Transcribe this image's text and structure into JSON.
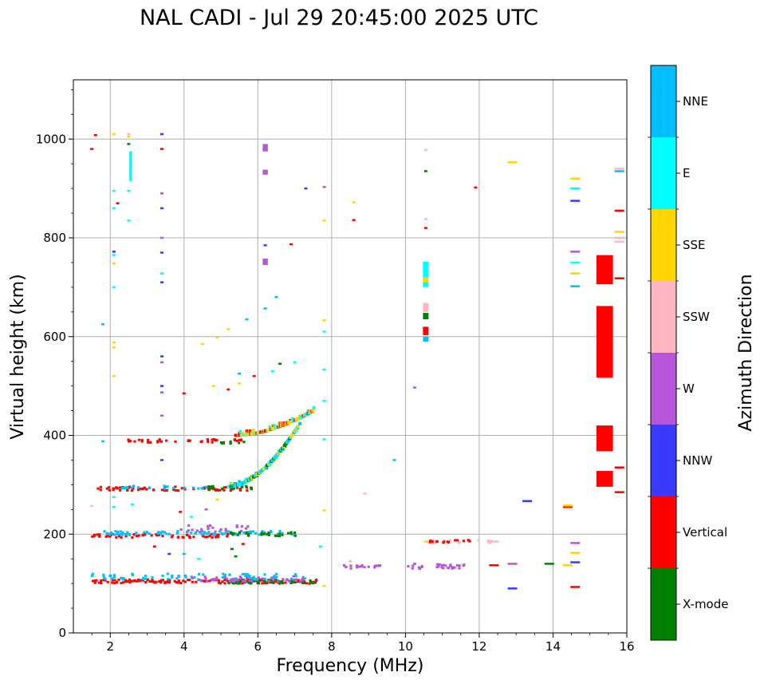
{
  "chart_data": {
    "type": "scatter",
    "title": "NAL CADI - Jul 29 20:45:00 2025 UTC",
    "xlabel": "Frequency (MHz)",
    "ylabel": "Virtual height (km)",
    "xlim": [
      1,
      16
    ],
    "ylim": [
      0,
      1120
    ],
    "xticks": [
      2,
      4,
      6,
      8,
      10,
      12,
      14,
      16
    ],
    "yticks": [
      0,
      200,
      400,
      600,
      800,
      1000
    ],
    "grid": true,
    "colorbar": {
      "title": "Azimuth Direction",
      "categories": [
        {
          "name": "X-mode",
          "color": "#008000"
        },
        {
          "name": "Vertical",
          "color": "#ff0000"
        },
        {
          "name": "NNW",
          "color": "#3a3aff"
        },
        {
          "name": "W",
          "color": "#b657d9"
        },
        {
          "name": "SSW",
          "color": "#ffb6c1"
        },
        {
          "name": "SSE",
          "color": "#ffd700"
        },
        {
          "name": "E",
          "color": "#00ffff"
        },
        {
          "name": "NNE",
          "color": "#00bfff"
        }
      ]
    },
    "traces": [
      {
        "cat": "Vertical",
        "f0": 1.5,
        "f1": 7.6,
        "h0": 100,
        "h1": 108,
        "density": 0.9
      },
      {
        "cat": "X-mode",
        "f0": 5.2,
        "f1": 7.6,
        "h0": 100,
        "h1": 108,
        "density": 0.9
      },
      {
        "cat": "W",
        "f0": 4.2,
        "f1": 7.2,
        "h0": 104,
        "h1": 115,
        "density": 0.6
      },
      {
        "cat": "NNE",
        "f0": 1.5,
        "f1": 7.4,
        "h0": 108,
        "h1": 120,
        "density": 0.4
      },
      {
        "cat": "Vertical",
        "f0": 1.5,
        "f1": 5.2,
        "h0": 193,
        "h1": 200,
        "density": 0.6
      },
      {
        "cat": "NNE",
        "f0": 1.6,
        "f1": 7.0,
        "h0": 198,
        "h1": 206,
        "density": 0.6
      },
      {
        "cat": "W",
        "f0": 3.8,
        "f1": 5.8,
        "h0": 205,
        "h1": 218,
        "density": 0.4
      },
      {
        "cat": "X-mode",
        "f0": 5.2,
        "f1": 7.0,
        "h0": 196,
        "h1": 204,
        "density": 0.5
      },
      {
        "cat": "Vertical",
        "f0": 1.6,
        "f1": 5.8,
        "h0": 288,
        "h1": 296,
        "density": 0.6
      },
      {
        "cat": "NNE",
        "f0": 2.2,
        "f1": 4.6,
        "h0": 292,
        "h1": 298,
        "density": 0.5
      },
      {
        "cat": "X-mode",
        "f0": 4.6,
        "f1": 5.8,
        "h0": 290,
        "h1": 297,
        "density": 0.5
      },
      {
        "cat": "Vertical",
        "f0": 2.3,
        "f1": 5.6,
        "h0": 385,
        "h1": 392,
        "density": 0.5
      },
      {
        "cat": "X-mode",
        "f0": 5.0,
        "f1": 5.6,
        "h0": 383,
        "h1": 390,
        "density": 0.5
      },
      {
        "cat": "W",
        "f0": 10.0,
        "f1": 11.6,
        "h0": 130,
        "h1": 140,
        "density": 0.6
      },
      {
        "cat": "W",
        "f0": 8.2,
        "f1": 9.4,
        "h0": 130,
        "h1": 137,
        "density": 0.5
      },
      {
        "cat": "SSW",
        "f0": 10.6,
        "f1": 12.4,
        "h0": 182,
        "h1": 188,
        "density": 0.4
      },
      {
        "cat": "Vertical",
        "f0": 10.6,
        "f1": 11.8,
        "h0": 183,
        "h1": 188,
        "density": 0.4
      }
    ],
    "curve": {
      "f0": 5.2,
      "f1": 7.1,
      "h0": 296,
      "h1": 420,
      "cats": [
        "X-mode",
        "SSE",
        "E",
        "NNE"
      ]
    },
    "upper_curve": {
      "f0": 5.4,
      "f1": 7.5,
      "h0": 400,
      "h1": 450,
      "cats": [
        "SSE",
        "E",
        "Vertical"
      ]
    },
    "bars": [
      {
        "cat": "Vertical",
        "f": 15.4,
        "h0": 706,
        "h1": 765,
        "w": 0.45
      },
      {
        "cat": "Vertical",
        "f": 15.4,
        "h0": 517,
        "h1": 662,
        "w": 0.45
      },
      {
        "cat": "Vertical",
        "f": 15.4,
        "h0": 368,
        "h1": 420,
        "w": 0.45
      },
      {
        "cat": "Vertical",
        "f": 15.4,
        "h0": 296,
        "h1": 328,
        "w": 0.45
      },
      {
        "cat": "NNE",
        "f": 10.55,
        "h0": 590,
        "h1": 600,
        "w": 0.15
      },
      {
        "cat": "Vertical",
        "f": 10.55,
        "h0": 603,
        "h1": 620,
        "w": 0.15
      },
      {
        "cat": "X-mode",
        "f": 10.55,
        "h0": 635,
        "h1": 648,
        "w": 0.15
      },
      {
        "cat": "SSW",
        "f": 10.55,
        "h0": 650,
        "h1": 668,
        "w": 0.15
      },
      {
        "cat": "E",
        "f": 10.55,
        "h0": 700,
        "h1": 752,
        "w": 0.15
      },
      {
        "cat": "SSE",
        "f": 10.55,
        "h0": 710,
        "h1": 720,
        "w": 0.15
      },
      {
        "cat": "E",
        "f": 2.55,
        "h0": 915,
        "h1": 975,
        "w": 0.07
      },
      {
        "cat": "W",
        "f": 6.2,
        "h0": 975,
        "h1": 990,
        "w": 0.14
      },
      {
        "cat": "W",
        "f": 6.2,
        "h0": 928,
        "h1": 938,
        "w": 0.14
      },
      {
        "cat": "W",
        "f": 6.2,
        "h0": 745,
        "h1": 758,
        "w": 0.14
      }
    ],
    "ticks": [
      {
        "cat": "SSW",
        "f": 15.8,
        "h": 792
      },
      {
        "cat": "SSW",
        "f": 15.8,
        "h": 800
      },
      {
        "cat": "SSE",
        "f": 15.8,
        "h": 812
      },
      {
        "cat": "Vertical",
        "f": 15.8,
        "h": 855
      },
      {
        "cat": "Vertical",
        "f": 15.8,
        "h": 718
      },
      {
        "cat": "NNE",
        "f": 15.8,
        "h": 935
      },
      {
        "cat": "SSW",
        "f": 15.8,
        "h": 940
      },
      {
        "cat": "Vertical",
        "f": 15.8,
        "h": 285
      },
      {
        "cat": "Vertical",
        "f": 15.8,
        "h": 335
      },
      {
        "cat": "Vertical",
        "f": 14.6,
        "h": 93
      },
      {
        "cat": "NNW",
        "f": 14.6,
        "h": 143
      },
      {
        "cat": "SSE",
        "f": 14.6,
        "h": 162
      },
      {
        "cat": "W",
        "f": 14.6,
        "h": 182
      },
      {
        "cat": "SSE",
        "f": 14.6,
        "h": 728
      },
      {
        "cat": "NNE",
        "f": 14.6,
        "h": 702
      },
      {
        "cat": "E",
        "f": 14.6,
        "h": 750
      },
      {
        "cat": "W",
        "f": 14.6,
        "h": 772
      },
      {
        "cat": "NNW",
        "f": 14.6,
        "h": 875
      },
      {
        "cat": "E",
        "f": 14.6,
        "h": 900
      },
      {
        "cat": "SSE",
        "f": 14.6,
        "h": 920
      },
      {
        "cat": "Vertical",
        "f": 14.4,
        "h": 255
      },
      {
        "cat": "SSE",
        "f": 14.4,
        "h": 258
      },
      {
        "cat": "SSE",
        "f": 14.4,
        "h": 137
      },
      {
        "cat": "X-mode",
        "f": 13.9,
        "h": 140
      },
      {
        "cat": "NNW",
        "f": 13.3,
        "h": 267
      },
      {
        "cat": "NNW",
        "f": 12.9,
        "h": 90
      },
      {
        "cat": "SSE",
        "f": 12.9,
        "h": 953
      },
      {
        "cat": "W",
        "f": 12.9,
        "h": 140
      },
      {
        "cat": "Vertical",
        "f": 11.9,
        "h": 902
      },
      {
        "cat": "Vertical",
        "f": 12.4,
        "h": 137
      },
      {
        "cat": "SSW",
        "f": 12.4,
        "h": 185
      },
      {
        "cat": "NNE",
        "f": 9.7,
        "h": 350
      },
      {
        "cat": "W",
        "f": 10.25,
        "h": 497
      },
      {
        "cat": "SSW",
        "f": 10.55,
        "h": 978
      },
      {
        "cat": "X-mode",
        "f": 10.55,
        "h": 935
      },
      {
        "cat": "SSW",
        "f": 10.55,
        "h": 838
      },
      {
        "cat": "Vertical",
        "f": 10.55,
        "h": 820
      },
      {
        "cat": "SSE",
        "f": 10.55,
        "h": 185
      },
      {
        "cat": "SSW",
        "f": 8.9,
        "h": 282
      },
      {
        "cat": "Vertical",
        "f": 8.6,
        "h": 836
      },
      {
        "cat": "SSE",
        "f": 8.6,
        "h": 872
      },
      {
        "cat": "SSW",
        "f": 8.5,
        "h": 145
      },
      {
        "cat": "SSE",
        "f": 7.8,
        "h": 835
      },
      {
        "cat": "W",
        "f": 7.8,
        "h": 903
      },
      {
        "cat": "SSE",
        "f": 7.8,
        "h": 248
      },
      {
        "cat": "E",
        "f": 7.8,
        "h": 392
      },
      {
        "cat": "E",
        "f": 7.8,
        "h": 470
      },
      {
        "cat": "E",
        "f": 7.8,
        "h": 533
      },
      {
        "cat": "E",
        "f": 7.8,
        "h": 610
      },
      {
        "cat": "SSE",
        "f": 7.8,
        "h": 633
      },
      {
        "cat": "SSE",
        "f": 7.8,
        "h": 95
      },
      {
        "cat": "NNW",
        "f": 7.3,
        "h": 900
      },
      {
        "cat": "Vertical",
        "f": 6.9,
        "h": 787
      },
      {
        "cat": "NNE",
        "f": 6.5,
        "h": 680
      },
      {
        "cat": "NNE",
        "f": 6.2,
        "h": 657
      },
      {
        "cat": "NNW",
        "f": 6.2,
        "h": 785
      },
      {
        "cat": "NNE",
        "f": 5.7,
        "h": 635
      },
      {
        "cat": "Vertical",
        "f": 4.0,
        "h": 485
      },
      {
        "cat": "Vertical",
        "f": 3.4,
        "h": 980
      },
      {
        "cat": "NNW",
        "f": 3.4,
        "h": 1010
      },
      {
        "cat": "W",
        "f": 3.4,
        "h": 890
      },
      {
        "cat": "NNW",
        "f": 3.4,
        "h": 860
      },
      {
        "cat": "W",
        "f": 3.4,
        "h": 800
      },
      {
        "cat": "NNW",
        "f": 3.4,
        "h": 770
      },
      {
        "cat": "E",
        "f": 3.4,
        "h": 728
      },
      {
        "cat": "NNW",
        "f": 3.4,
        "h": 710
      },
      {
        "cat": "NNW",
        "f": 3.4,
        "h": 560
      },
      {
        "cat": "W",
        "f": 3.4,
        "h": 548
      },
      {
        "cat": "NNW",
        "f": 3.4,
        "h": 500
      },
      {
        "cat": "W",
        "f": 3.4,
        "h": 487
      },
      {
        "cat": "W",
        "f": 3.4,
        "h": 440
      },
      {
        "cat": "NNW",
        "f": 3.4,
        "h": 350
      },
      {
        "cat": "SSE",
        "f": 2.5,
        "h": 1005
      },
      {
        "cat": "SSW",
        "f": 2.5,
        "h": 1010
      },
      {
        "cat": "X-mode",
        "f": 2.5,
        "h": 990
      },
      {
        "cat": "E",
        "f": 2.5,
        "h": 895
      },
      {
        "cat": "E",
        "f": 2.5,
        "h": 835
      },
      {
        "cat": "Vertical",
        "f": 2.2,
        "h": 870
      },
      {
        "cat": "SSE",
        "f": 2.1,
        "h": 1010
      },
      {
        "cat": "E",
        "f": 2.1,
        "h": 860
      },
      {
        "cat": "E",
        "f": 2.1,
        "h": 895
      },
      {
        "cat": "NNW",
        "f": 2.1,
        "h": 772
      },
      {
        "cat": "E",
        "f": 2.1,
        "h": 765
      },
      {
        "cat": "SSE",
        "f": 2.1,
        "h": 748
      },
      {
        "cat": "E",
        "f": 2.1,
        "h": 700
      },
      {
        "cat": "SSE",
        "f": 2.1,
        "h": 588
      },
      {
        "cat": "SSE",
        "f": 2.1,
        "h": 578
      },
      {
        "cat": "SSE",
        "f": 2.1,
        "h": 520
      },
      {
        "cat": "E",
        "f": 2.1,
        "h": 255
      },
      {
        "cat": "E",
        "f": 2.1,
        "h": 275
      },
      {
        "cat": "Vertical",
        "f": 1.6,
        "h": 1008
      },
      {
        "cat": "Vertical",
        "f": 1.5,
        "h": 980
      },
      {
        "cat": "SSW",
        "f": 1.5,
        "h": 257
      },
      {
        "cat": "NNE",
        "f": 1.8,
        "h": 388
      },
      {
        "cat": "SSE",
        "f": 4.5,
        "h": 585
      },
      {
        "cat": "SSE",
        "f": 4.9,
        "h": 598
      },
      {
        "cat": "SSE",
        "f": 5.2,
        "h": 615
      },
      {
        "cat": "SSE",
        "f": 4.8,
        "h": 500
      },
      {
        "cat": "SSE",
        "f": 5.5,
        "h": 505
      },
      {
        "cat": "NNE",
        "f": 5.5,
        "h": 525
      },
      {
        "cat": "X-mode",
        "f": 6.6,
        "h": 545
      },
      {
        "cat": "E",
        "f": 6.4,
        "h": 530
      },
      {
        "cat": "E",
        "f": 7.0,
        "h": 548
      },
      {
        "cat": "Vertical",
        "f": 5.2,
        "h": 493
      },
      {
        "cat": "Vertical",
        "f": 5.9,
        "h": 520
      },
      {
        "cat": "NNE",
        "f": 1.8,
        "h": 625
      },
      {
        "cat": "E",
        "f": 2.6,
        "h": 260
      },
      {
        "cat": "Vertical",
        "f": 3.9,
        "h": 245
      },
      {
        "cat": "E",
        "f": 4.2,
        "h": 235
      },
      {
        "cat": "W",
        "f": 4.6,
        "h": 250
      },
      {
        "cat": "SSE",
        "f": 4.9,
        "h": 270
      },
      {
        "cat": "Vertical",
        "f": 3.2,
        "h": 175
      },
      {
        "cat": "NNW",
        "f": 3.6,
        "h": 160
      },
      {
        "cat": "NNE",
        "f": 4.0,
        "h": 160
      },
      {
        "cat": "E",
        "f": 4.4,
        "h": 150
      },
      {
        "cat": "X-mode",
        "f": 5.3,
        "h": 170
      },
      {
        "cat": "Vertical",
        "f": 5.6,
        "h": 180
      },
      {
        "cat": "X-mode",
        "f": 5.4,
        "h": 155
      },
      {
        "cat": "E",
        "f": 7.7,
        "h": 175
      }
    ]
  }
}
